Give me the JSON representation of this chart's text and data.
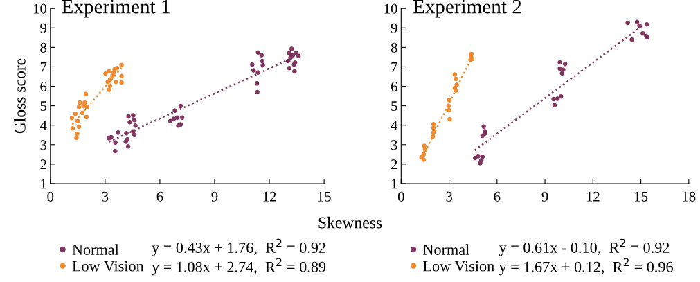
{
  "chart_data": [
    {
      "type": "scatter",
      "title": "Experiment 1",
      "xlabel": "Skewness",
      "ylabel": "Gloss score",
      "xlim": [
        0,
        15
      ],
      "xticks": [
        0,
        3,
        6,
        9,
        12,
        15
      ],
      "ylim": [
        1,
        10
      ],
      "yticks": [
        1,
        2,
        3,
        4,
        5,
        6,
        7,
        8,
        9,
        10
      ],
      "grid": false,
      "legend": "bottom",
      "marker": "circle",
      "annotations": [
        "y = 0.43x + 1.76,  R$^{2}$ = 0.92",
        "y = 1.08x + 2.74,  R$^{2}$ = 0.89"
      ],
      "series": [
        {
          "name": "Normal",
          "color": "#7f3560",
          "x": [
            3.21,
            3.33,
            3.55,
            3.56,
            3.71,
            4.16,
            4.22,
            4.26,
            4.13,
            4.28,
            4.35,
            4.54,
            4.6,
            4.66,
            4.6,
            4.54,
            6.57,
            6.76,
            6.82,
            6.95,
            7.01,
            7.14,
            7.14,
            7.22,
            11.06,
            11.13,
            11.32,
            11.34,
            11.38,
            11.57,
            11.61,
            11.64,
            11.38,
            13.22,
            13.09,
            13.16,
            13.03,
            13.09,
            13.35,
            13.41,
            13.38,
            13.47,
            13.6,
            13.29
          ],
          "values": [
            3.33,
            3.38,
            2.67,
            3.11,
            3.62,
            3.59,
            3.27,
            2.91,
            3.15,
            4.45,
            4.16,
            4.51,
            4.27,
            3.98,
            3.5,
            3.68,
            4.21,
            4.33,
            4.75,
            4.39,
            3.98,
            4.04,
            4.99,
            4.39,
            7.12,
            6.82,
            6.15,
            5.7,
            7.74,
            7.6,
            7.3,
            7.09,
            6.71,
            7.92,
            7.71,
            7.48,
            7.3,
            6.94,
            7.12,
            7.22,
            6.77,
            7.71,
            7.56,
            7.6
          ]
        },
        {
          "name": "Low Vision",
          "color": "#f08a2e",
          "x": [
            3.9,
            1.18,
            1.22,
            1.43,
            1.47,
            1.37,
            1.56,
            1.62,
            1.94,
            1.88,
            2.0,
            1.98,
            1.75,
            1.5,
            1.56,
            1.81,
            3.02,
            3.21,
            3.52,
            3.65,
            3.4,
            3.27,
            3.14,
            3.21,
            3.9,
            3.9,
            3.59,
            3.27,
            3.46
          ],
          "values": [
            7.1,
            4.37,
            3.84,
            3.36,
            3.56,
            4.59,
            4.93,
            5.16,
            5.6,
            5.16,
            4.93,
            4.42,
            4.63,
            4.21,
            3.92,
            4.99,
            6.65,
            6.77,
            6.88,
            6.94,
            6.53,
            6.35,
            6.23,
            5.82,
            6.53,
            6.2,
            6.23,
            6.03,
            6.71
          ]
        },
        {
          "type": "line",
          "color": "#7f3560",
          "line_style": "dotted",
          "marker": "none",
          "x": [
            3.2,
            13.3
          ],
          "values": [
            3.14,
            7.48
          ]
        },
        {
          "type": "line",
          "color": "#f08a2e",
          "line_style": "dotted",
          "marker": "none",
          "x": [
            1.2,
            3.9
          ],
          "values": [
            4.04,
            6.95
          ]
        }
      ]
    },
    {
      "type": "scatter",
      "title": "Experiment 2",
      "xlim": [
        0,
        18
      ],
      "xticks": [
        0,
        3,
        6,
        9,
        12,
        15,
        18
      ],
      "ylim": [
        1,
        10
      ],
      "yticks": [
        1,
        2,
        3,
        4,
        5,
        6,
        7,
        8,
        9,
        10
      ],
      "grid": false,
      "legend": "bottom",
      "marker": "circle",
      "annotations": [
        "y = 0.61x - 0.10,  R$^{2}$ = 0.92",
        "y = 1.67x + 0.12,  R$^{2}$ = 0.96"
      ],
      "series": [
        {
          "name": "Normal",
          "color": "#7f3560",
          "x": [
            4.63,
            4.81,
            4.95,
            5.02,
            5.09,
            5.09,
            5.17,
            5.24,
            5.24,
            9.6,
            9.54,
            9.78,
            10.0,
            9.93,
            10.07,
            10.14,
            10.26,
            9.93,
            14.18,
            14.44,
            14.76,
            14.91,
            15.12,
            15.34,
            15.37,
            15.41
          ],
          "values": [
            2.32,
            2.41,
            2.05,
            2.2,
            2.38,
            3.46,
            3.93,
            3.69,
            3.57,
            5.03,
            5.34,
            5.36,
            5.48,
            7.23,
            6.67,
            6.85,
            7.15,
            6.91,
            9.26,
            8.4,
            9.3,
            9.12,
            8.72,
            8.58,
            9.18,
            8.52
          ]
        },
        {
          "name": "Low Vision",
          "color": "#f08a2e",
          "x": [
            1.27,
            1.41,
            1.45,
            1.49,
            1.41,
            2.03,
            2.02,
            2.03,
            1.99,
            3.0,
            2.97,
            3.0,
            3.04,
            3.36,
            3.43,
            3.36,
            3.43,
            3.48,
            4.4,
            4.34,
            4.44,
            4.37
          ],
          "values": [
            2.35,
            2.23,
            2.94,
            2.74,
            2.5,
            4.05,
            3.87,
            3.63,
            3.42,
            5.3,
            5.0,
            4.77,
            4.31,
            6.61,
            6.38,
            5.9,
            5.78,
            6.08,
            7.66,
            7.36,
            7.41,
            7.53
          ]
        },
        {
          "type": "line",
          "color": "#7f3560",
          "line_style": "dotted",
          "marker": "none",
          "x": [
            4.6,
            15.05
          ],
          "values": [
            2.71,
            9.08
          ]
        },
        {
          "type": "line",
          "color": "#f08a2e",
          "line_style": "dotted",
          "marker": "none",
          "x": [
            1.5,
            4.3
          ],
          "values": [
            2.63,
            7.3
          ]
        }
      ]
    }
  ]
}
